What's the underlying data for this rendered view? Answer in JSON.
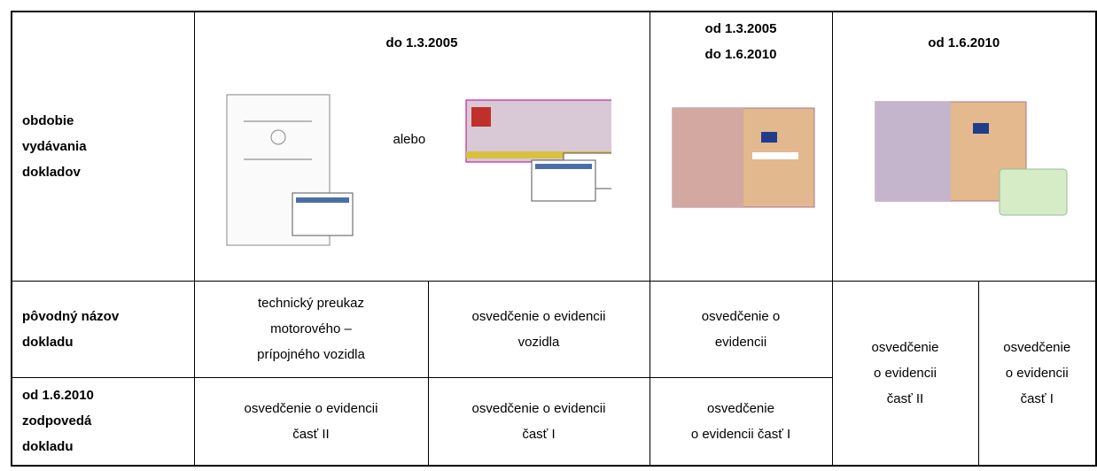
{
  "header": {
    "label": [
      "obdobie",
      "vydávania",
      "dokladov"
    ],
    "periods": [
      [
        "do 1.3.2005"
      ],
      [
        "od 1.3.2005",
        "do 1.6.2010"
      ],
      [
        "od 1.6.2010"
      ]
    ],
    "alternative": "alebo"
  },
  "rows": [
    {
      "label": [
        "pôvodný názov",
        "dokladu"
      ],
      "cells": [
        [
          "technický preukaz",
          "motorového –",
          "prípojného vozidla"
        ],
        [
          "osvedčenie o evidencii",
          "vozidla"
        ],
        [
          "osvedčenie o",
          "evidencii"
        ]
      ]
    },
    {
      "label": [
        "od 1.6.2010",
        "zodpovedá",
        "dokladu"
      ],
      "cells": [
        [
          "osvedčenie o evidencii",
          "časť II"
        ],
        [
          "osvedčenie o evidencii",
          "časť I"
        ],
        [
          "osvedčenie",
          "o evidencii časť I"
        ]
      ]
    }
  ],
  "merged": [
    [
      "osvedčenie",
      "o evidencii",
      "časť II"
    ],
    [
      "osvedčenie",
      "o evidencii",
      "časť I"
    ]
  ]
}
